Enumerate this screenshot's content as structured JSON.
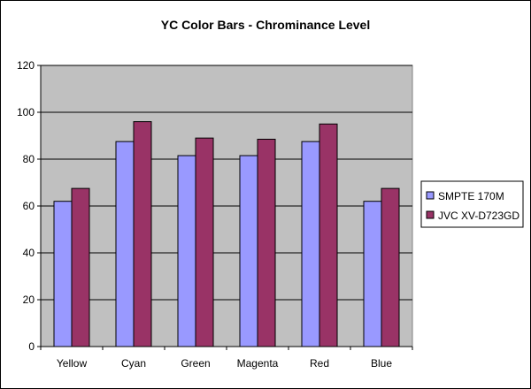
{
  "chart_data": {
    "type": "bar",
    "title": "YC Color Bars - Chrominance Level",
    "xlabel": "",
    "ylabel": "",
    "ylim": [
      0,
      120
    ],
    "yticks": [
      0,
      20,
      40,
      60,
      80,
      100,
      120
    ],
    "grid": true,
    "plot_background": "#c0c0c0",
    "legend_position": "right",
    "categories": [
      "Yellow",
      "Cyan",
      "Green",
      "Magenta",
      "Red",
      "Blue"
    ],
    "series": [
      {
        "name": "SMPTE 170M",
        "color": "#9999ff",
        "values": [
          62,
          87.5,
          81.5,
          81.5,
          87.5,
          62
        ]
      },
      {
        "name": "JVC XV-D723GD",
        "color": "#993366",
        "values": [
          67.5,
          96,
          89,
          88.5,
          95,
          67.5
        ]
      }
    ]
  }
}
